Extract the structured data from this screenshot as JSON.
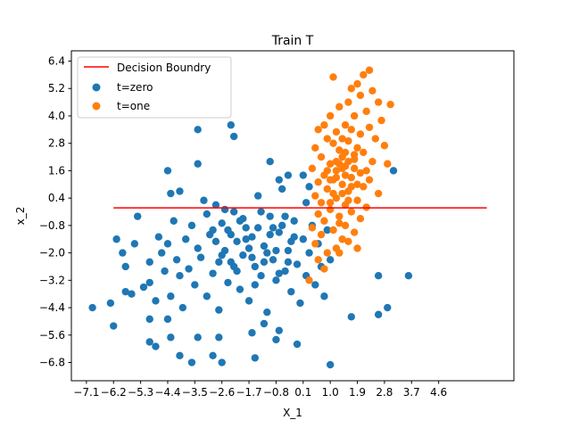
{
  "chart_data": {
    "type": "scatter",
    "title": "Train T",
    "xlabel": "X_1",
    "ylabel": "x_2",
    "xlim": [
      -7.6,
      7.1
    ],
    "ylim": [
      -7.6,
      6.85
    ],
    "xticks": [
      "-7.1",
      "-6.2",
      "-5.3",
      "-4.4",
      "-3.5",
      "-2.6",
      "-1.7",
      "-0.8",
      "0.1",
      "1.0",
      "1.9",
      "2.8",
      "3.7",
      "4.6"
    ],
    "xtick_values": [
      -7.1,
      -6.2,
      -5.3,
      -4.4,
      -3.5,
      -2.6,
      -1.7,
      -0.8,
      0.1,
      1.0,
      1.9,
      2.8,
      3.7,
      4.6
    ],
    "yticks": [
      "6.4",
      "5.2",
      "4.0",
      "2.8",
      "1.6",
      "0.4",
      "-0.8",
      "-2.0",
      "-3.2",
      "-4.4",
      "-5.6",
      "-6.8"
    ],
    "ytick_values": [
      6.4,
      5.2,
      4.0,
      2.8,
      1.6,
      0.4,
      -0.8,
      -2.0,
      -3.2,
      -4.4,
      -5.6,
      -6.8
    ],
    "legend_position": "top-left",
    "grid": false,
    "line": {
      "name": "Decision Boundry",
      "color": "#ff0000",
      "x": [
        -6.2,
        6.2
      ],
      "y": [
        -0.03,
        -0.03
      ]
    },
    "series": [
      {
        "name": "t=zero",
        "color": "#1f77b4",
        "points": [
          [
            -6.9,
            -4.4
          ],
          [
            -6.2,
            -5.2
          ],
          [
            -6.1,
            -1.4
          ],
          [
            -5.9,
            -2.0
          ],
          [
            -5.8,
            -2.6
          ],
          [
            -5.6,
            -3.8
          ],
          [
            -5.5,
            -1.6
          ],
          [
            -5.4,
            -0.4
          ],
          [
            -5.2,
            -3.5
          ],
          [
            -5.0,
            -3.3
          ],
          [
            -5.0,
            -2.4
          ],
          [
            -4.8,
            -4.1
          ],
          [
            -4.7,
            -1.3
          ],
          [
            -4.6,
            -2.0
          ],
          [
            -4.5,
            -2.8
          ],
          [
            -4.4,
            -1.6
          ],
          [
            -4.3,
            -3.9
          ],
          [
            -4.2,
            -0.6
          ],
          [
            -4.1,
            -2.3
          ],
          [
            -4.0,
            -3.0
          ],
          [
            -3.9,
            -4.4
          ],
          [
            -3.8,
            -1.4
          ],
          [
            -3.7,
            -2.7
          ],
          [
            -3.6,
            -0.8
          ],
          [
            -3.5,
            -3.4
          ],
          [
            -3.4,
            -1.8
          ],
          [
            -3.3,
            -2.2
          ],
          [
            -3.2,
            0.3
          ],
          [
            -3.1,
            -3.9
          ],
          [
            -3.0,
            -1.2
          ],
          [
            -2.9,
            -2.9
          ],
          [
            -2.8,
            0.1
          ],
          [
            -2.7,
            -4.5
          ],
          [
            -2.6,
            -0.7
          ],
          [
            -2.5,
            -1.9
          ],
          [
            -2.4,
            -3.3
          ],
          [
            -2.3,
            -2.4
          ],
          [
            -2.2,
            -0.2
          ],
          [
            -2.1,
            -1.5
          ],
          [
            -2.0,
            -3.6
          ],
          [
            -1.9,
            -2.1
          ],
          [
            -1.8,
            -0.9
          ],
          [
            -1.7,
            -4.1
          ],
          [
            -1.6,
            -1.3
          ],
          [
            -1.5,
            -2.6
          ],
          [
            -1.4,
            0.5
          ],
          [
            -1.3,
            -3.0
          ],
          [
            -1.2,
            -1.7
          ],
          [
            -1.1,
            -4.6
          ],
          [
            -1.0,
            -0.4
          ],
          [
            -0.9,
            -2.3
          ],
          [
            -0.8,
            -3.2
          ],
          [
            -0.7,
            -1.1
          ],
          [
            -0.6,
            0.8
          ],
          [
            -0.5,
            -2.8
          ],
          [
            -0.4,
            -1.9
          ],
          [
            -0.3,
            -3.7
          ],
          [
            -0.2,
            -0.6
          ],
          [
            -0.1,
            -2.5
          ],
          [
            0.0,
            -4.2
          ],
          [
            0.1,
            -1.4
          ],
          [
            0.2,
            -3.0
          ],
          [
            0.3,
            -2.0
          ],
          [
            0.4,
            -0.8
          ],
          [
            0.5,
            -3.4
          ],
          [
            0.6,
            -1.6
          ],
          [
            0.7,
            -2.6
          ],
          [
            0.8,
            -3.9
          ],
          [
            0.9,
            -1.0
          ],
          [
            1.0,
            -2.3
          ],
          [
            -3.1,
            -0.3
          ],
          [
            -2.9,
            -1.0
          ],
          [
            -2.7,
            -2.4
          ],
          [
            -2.5,
            -0.1
          ],
          [
            -2.3,
            -1.2
          ],
          [
            -2.1,
            -2.8
          ],
          [
            -1.9,
            -0.5
          ],
          [
            -1.7,
            -1.8
          ],
          [
            -1.5,
            -3.4
          ],
          [
            -1.3,
            -0.2
          ],
          [
            -1.1,
            -2.0
          ],
          [
            -0.9,
            -0.9
          ],
          [
            -0.7,
            -2.9
          ],
          [
            -0.5,
            -0.4
          ],
          [
            -0.3,
            -1.5
          ],
          [
            -2.8,
            -1.5
          ],
          [
            -2.6,
            -2.1
          ],
          [
            -2.4,
            -1.0
          ],
          [
            -2.2,
            -2.6
          ],
          [
            -2.0,
            -0.6
          ],
          [
            -1.8,
            -1.4
          ],
          [
            -1.6,
            -2.2
          ],
          [
            -1.4,
            -0.9
          ],
          [
            -1.2,
            -2.4
          ],
          [
            -1.0,
            -1.2
          ],
          [
            -0.8,
            -1.9
          ],
          [
            -0.6,
            -0.8
          ],
          [
            -0.4,
            -2.4
          ],
          [
            -0.2,
            -1.3
          ],
          [
            -3.4,
            3.4
          ],
          [
            -3.4,
            1.9
          ],
          [
            -4.4,
            1.6
          ],
          [
            -4.3,
            0.6
          ],
          [
            -4.0,
            0.7
          ],
          [
            -2.3,
            3.6
          ],
          [
            -2.2,
            3.1
          ],
          [
            -1.0,
            2.0
          ],
          [
            -0.7,
            1.2
          ],
          [
            -0.4,
            1.4
          ],
          [
            0.1,
            1.4
          ],
          [
            0.3,
            0.9
          ],
          [
            0.2,
            0.2
          ],
          [
            3.1,
            1.6
          ],
          [
            2.6,
            -3.0
          ],
          [
            3.6,
            -3.0
          ],
          [
            2.9,
            -4.4
          ],
          [
            2.6,
            -4.7
          ],
          [
            1.7,
            -4.8
          ],
          [
            1.0,
            -6.9
          ],
          [
            -1.5,
            -6.6
          ],
          [
            -2.6,
            -6.8
          ],
          [
            -3.6,
            -6.8
          ],
          [
            -2.9,
            -6.5
          ],
          [
            -4.0,
            -6.5
          ],
          [
            -4.8,
            -6.1
          ],
          [
            -5.0,
            -5.9
          ],
          [
            -4.3,
            -5.7
          ],
          [
            -3.4,
            -5.7
          ],
          [
            -2.7,
            -5.7
          ],
          [
            -1.6,
            -5.5
          ],
          [
            -0.8,
            -5.8
          ],
          [
            -0.7,
            -5.4
          ],
          [
            -0.1,
            -6.0
          ],
          [
            -1.2,
            -5.1
          ],
          [
            -5.0,
            -4.9
          ],
          [
            -6.3,
            -4.2
          ],
          [
            -5.8,
            -3.7
          ],
          [
            -4.4,
            -4.9
          ]
        ]
      },
      {
        "name": "t=one",
        "color": "#ff7f0e",
        "points": [
          [
            1.1,
            5.7
          ],
          [
            2.1,
            5.8
          ],
          [
            2.3,
            6.0
          ],
          [
            1.9,
            5.4
          ],
          [
            2.4,
            5.1
          ],
          [
            1.7,
            5.2
          ],
          [
            2.0,
            4.9
          ],
          [
            3.0,
            4.5
          ],
          [
            2.6,
            4.6
          ],
          [
            1.6,
            4.6
          ],
          [
            1.3,
            4.4
          ],
          [
            2.2,
            4.2
          ],
          [
            1.0,
            4.0
          ],
          [
            1.8,
            4.0
          ],
          [
            2.7,
            3.8
          ],
          [
            0.8,
            3.6
          ],
          [
            1.5,
            3.6
          ],
          [
            2.3,
            3.5
          ],
          [
            0.6,
            3.4
          ],
          [
            1.2,
            3.3
          ],
          [
            2.0,
            3.2
          ],
          [
            2.5,
            3.0
          ],
          [
            0.9,
            3.0
          ],
          [
            1.6,
            2.9
          ],
          [
            2.8,
            2.7
          ],
          [
            0.5,
            2.6
          ],
          [
            1.3,
            2.5
          ],
          [
            2.1,
            2.4
          ],
          [
            0.7,
            2.2
          ],
          [
            1.8,
            2.1
          ],
          [
            2.4,
            2.0
          ],
          [
            1.0,
            1.9
          ],
          [
            1.5,
            1.8
          ],
          [
            2.9,
            1.9
          ],
          [
            0.4,
            1.7
          ],
          [
            1.2,
            1.6
          ],
          [
            2.0,
            1.5
          ],
          [
            0.8,
            1.4
          ],
          [
            1.7,
            1.3
          ],
          [
            2.3,
            1.2
          ],
          [
            0.6,
            1.1
          ],
          [
            1.4,
            1.0
          ],
          [
            2.1,
            0.9
          ],
          [
            0.9,
            0.8
          ],
          [
            1.6,
            0.7
          ],
          [
            2.6,
            0.6
          ],
          [
            0.5,
            0.5
          ],
          [
            1.2,
            0.4
          ],
          [
            1.9,
            0.3
          ],
          [
            0.7,
            0.2
          ],
          [
            1.5,
            0.1
          ],
          [
            2.2,
            0.0
          ],
          [
            1.0,
            -0.1
          ],
          [
            1.7,
            -0.2
          ],
          [
            0.6,
            -0.3
          ],
          [
            1.3,
            -0.4
          ],
          [
            2.0,
            -0.5
          ],
          [
            0.8,
            -0.6
          ],
          [
            1.5,
            -0.8
          ],
          [
            0.4,
            -0.9
          ],
          [
            1.1,
            -1.0
          ],
          [
            1.8,
            -1.1
          ],
          [
            0.7,
            -1.2
          ],
          [
            1.4,
            -1.4
          ],
          [
            0.5,
            -1.6
          ],
          [
            1.2,
            -1.8
          ],
          [
            0.9,
            -2.0
          ],
          [
            0.6,
            -2.3
          ],
          [
            1.3,
            -2.0
          ],
          [
            1.9,
            -1.8
          ],
          [
            0.3,
            -3.2
          ],
          [
            0.8,
            -2.7
          ],
          [
            1.6,
            -1.5
          ],
          [
            1.4,
            2.2
          ],
          [
            1.1,
            2.8
          ],
          [
            1.9,
            2.6
          ],
          [
            1.4,
            3.0
          ],
          [
            1.7,
            3.4
          ],
          [
            1.1,
            1.2
          ],
          [
            1.8,
            1.7
          ],
          [
            1.3,
            1.9
          ],
          [
            1.0,
            0.2
          ],
          [
            1.6,
            0.3
          ],
          [
            1.3,
            -0.7
          ],
          [
            1.5,
            2.4
          ],
          [
            1.2,
            1.3
          ],
          [
            1.7,
            0.9
          ],
          [
            0.9,
            1.6
          ],
          [
            1.4,
            0.6
          ],
          [
            1.8,
            2.3
          ],
          [
            1.1,
            0.6
          ],
          [
            2.2,
            1.6
          ],
          [
            1.6,
            2.0
          ],
          [
            1.0,
            1.2
          ],
          [
            1.5,
            1.4
          ],
          [
            1.2,
            2.0
          ],
          [
            1.9,
            1.0
          ],
          [
            1.4,
            1.7
          ]
        ]
      }
    ]
  }
}
